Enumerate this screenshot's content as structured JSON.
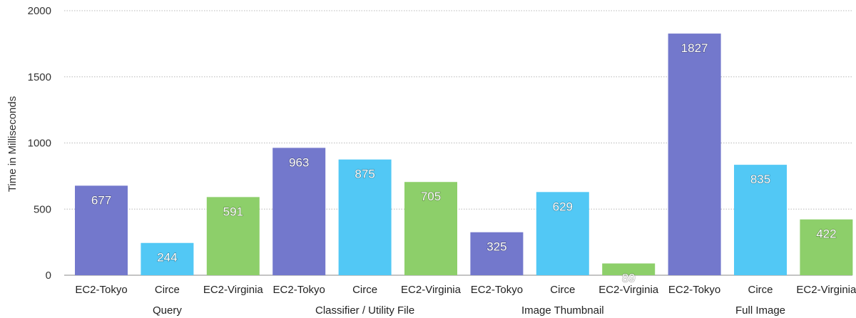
{
  "chart_data": {
    "type": "bar",
    "title": "",
    "xlabel": "",
    "ylabel": "Time in Milliseconds",
    "ylim": [
      0,
      2000
    ],
    "yticks": [
      0,
      500,
      1000,
      1500,
      2000
    ],
    "grid": true,
    "groups": [
      {
        "name": "Query",
        "bars": [
          {
            "label": "EC2-Tokyo",
            "value": 677
          },
          {
            "label": "Circe",
            "value": 244
          },
          {
            "label": "EC2-Virginia",
            "value": 591
          }
        ]
      },
      {
        "name": "Classifier / Utility File",
        "bars": [
          {
            "label": "EC2-Tokyo",
            "value": 963
          },
          {
            "label": "Circe",
            "value": 875
          },
          {
            "label": "EC2-Virginia",
            "value": 705
          }
        ]
      },
      {
        "name": "Image Thumbnail",
        "bars": [
          {
            "label": "EC2-Tokyo",
            "value": 325
          },
          {
            "label": "Circe",
            "value": 629
          },
          {
            "label": "EC2-Virginia",
            "value": 89
          }
        ]
      },
      {
        "name": "Full Image",
        "bars": [
          {
            "label": "EC2-Tokyo",
            "value": 1827
          },
          {
            "label": "Circe",
            "value": 835
          },
          {
            "label": "EC2-Virginia",
            "value": 422
          }
        ]
      }
    ],
    "colors": {
      "EC2-Tokyo": "#7378cc",
      "Circe": "#52c8f5",
      "EC2-Virginia": "#8dcf6a"
    }
  }
}
